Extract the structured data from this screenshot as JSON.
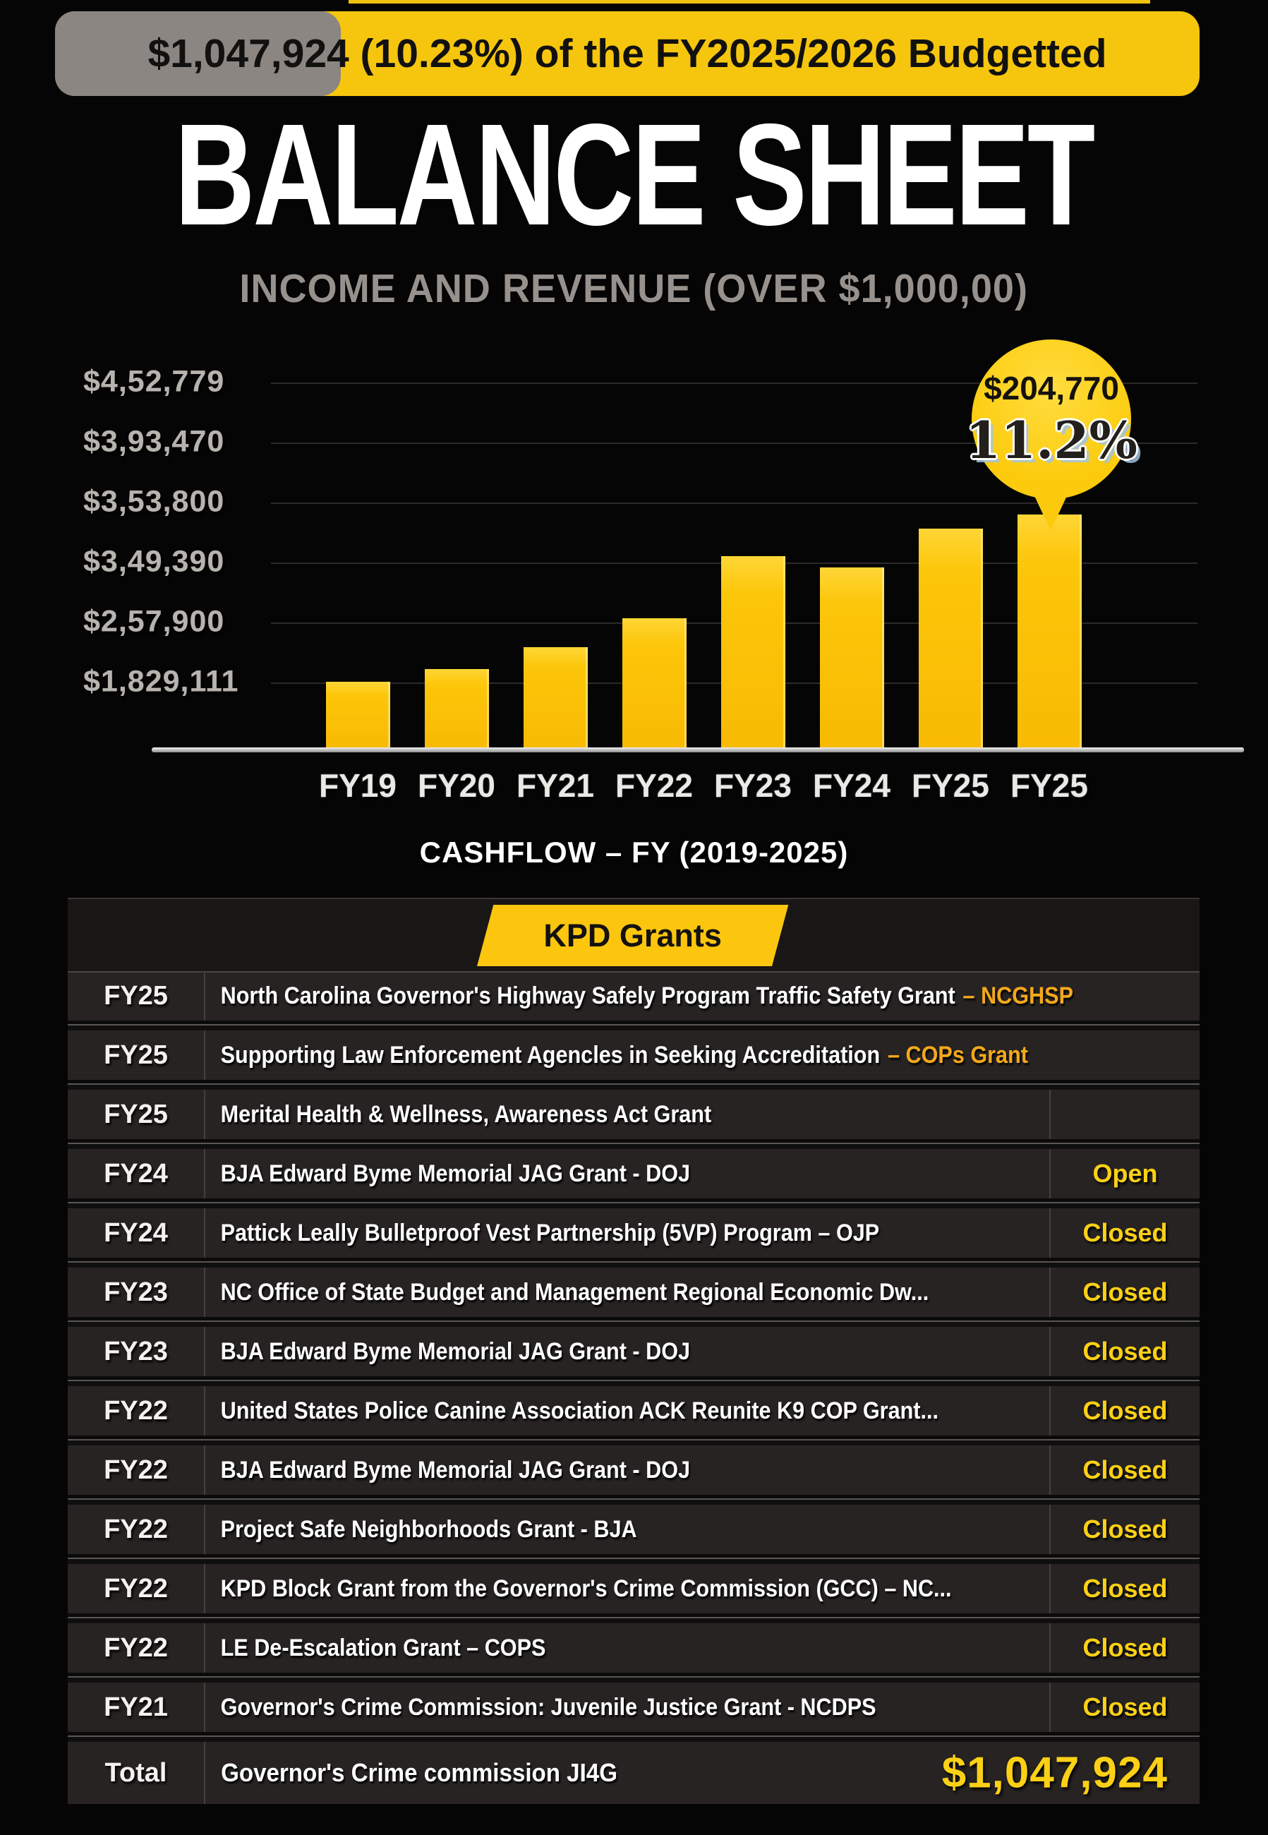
{
  "banner": {
    "text": "$1,047,924 (10.23%) of the FY2025/2026 Budgetted"
  },
  "title": "BALANCE SHEET",
  "subtitle": "INCOME AND REVENUE (OVER $1,000,00)",
  "chart_data": {
    "type": "bar",
    "title": "CASHFLOW – FY (2019-2025)",
    "categories": [
      "FY19",
      "FY20",
      "FY21",
      "FY22",
      "FY23",
      "FY24",
      "FY25",
      "FY25"
    ],
    "values_relative_pct": [
      18,
      21.5,
      27.5,
      35.5,
      52.5,
      49.5,
      60,
      64
    ],
    "bars": [
      {
        "label": "FY19",
        "h": 18
      },
      {
        "label": "FY20",
        "h": 21.5
      },
      {
        "label": "FY21",
        "h": 27.5
      },
      {
        "label": "FY22",
        "h": 35.5
      },
      {
        "label": "FY23",
        "h": 52.5
      },
      {
        "label": "FY24",
        "h": 49.5
      },
      {
        "label": "FY25",
        "h": 60
      },
      {
        "label": "FY25",
        "h": 64
      }
    ],
    "y_tick_labels": [
      "$4,52,779",
      "$3,93,470",
      "$3,53,800",
      "$3,49,390",
      "$2,57,900",
      "$1,829,111"
    ],
    "callout": {
      "value": "$204,770",
      "percent": "11.2%",
      "applies_to": "FY25 (last bar)"
    },
    "grid": true,
    "legend": false,
    "bar_color": "#fcc60a"
  },
  "grants": {
    "header": "KPD Grants",
    "rows": [
      {
        "fy": "FY25",
        "desc": "North Carolina Governor's Highway Safely Program Traffic Safety Grant",
        "suffix": "– NCGHSP",
        "status": ""
      },
      {
        "fy": "FY25",
        "desc": "Supporting Law Enforcement Agencles in Seeking Accreditation",
        "suffix": "– COPs Grant",
        "status": ""
      },
      {
        "fy": "FY25",
        "desc": "Merital Health & Wellness, Awareness Act Grant",
        "suffix": "",
        "status": ""
      },
      {
        "fy": "FY24",
        "desc": "BJA Edward Byme Memorial JAG Grant - DOJ",
        "suffix": "",
        "status": "Open"
      },
      {
        "fy": "FY24",
        "desc": "Pattick Leally Bulletproof Vest Partnership (5VP) Program – OJP",
        "suffix": "",
        "status": "Closed"
      },
      {
        "fy": "FY23",
        "desc": "NC Office of State Budget and Management Regional Economic Dw...",
        "suffix": "",
        "status": "Closed"
      },
      {
        "fy": "FY23",
        "desc": "BJA Edward Byme Memorial JAG Grant - DOJ",
        "suffix": "",
        "status": "Closed"
      },
      {
        "fy": "FY22",
        "desc": "United States Police Canine Association ACK Reunite K9 COP Grant...",
        "suffix": "",
        "status": "Closed"
      },
      {
        "fy": "FY22",
        "desc": "BJA Edward Byme Memorial JAG Grant - DOJ",
        "suffix": "",
        "status": "Closed"
      },
      {
        "fy": "FY22",
        "desc": "Project Safe Neighborhoods Grant - BJA",
        "suffix": "",
        "status": "Closed"
      },
      {
        "fy": "FY22",
        "desc": "KPD Block Grant from the Governor's Crime Commission (GCC) – NC...",
        "suffix": "",
        "status": "Closed"
      },
      {
        "fy": "FY22",
        "desc": "LE De-Escalation Grant – COPS",
        "suffix": "",
        "status": "Closed"
      },
      {
        "fy": "FY21",
        "desc": "Governor's Crime Commission:  Juvenile Justice Grant - NCDPS",
        "suffix": "",
        "status": "Closed"
      }
    ],
    "total": {
      "label": "Total",
      "desc": "Governor's Crime commission JI4G",
      "amount": "$1,047,924"
    }
  },
  "colors": {
    "yellow": "#fcc60a",
    "status_yellow": "#fcd015",
    "suffix_orange": "#f3a81c",
    "chip_gray": "#8b8681",
    "silver": "#b7b3ae"
  }
}
